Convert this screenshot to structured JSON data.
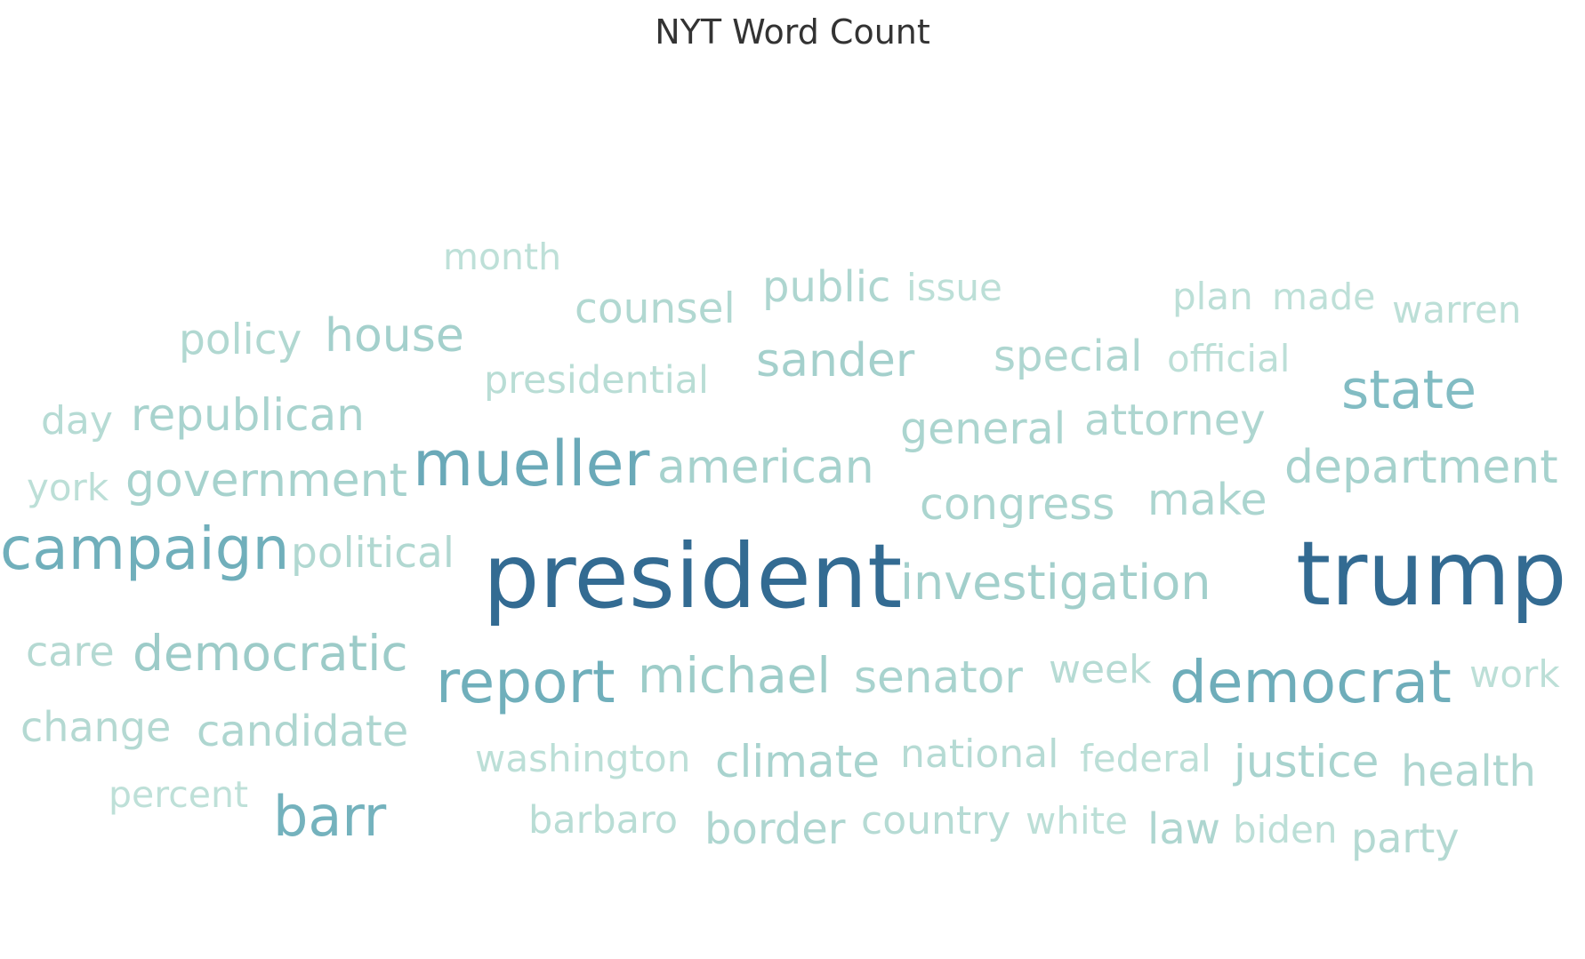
{
  "chart_data": {
    "type": "wordcloud",
    "title": "NYT Word Count",
    "words": [
      {
        "text": "president",
        "weight": 100,
        "color": "#336b92"
      },
      {
        "text": "trump",
        "weight": 100,
        "color": "#336b92"
      },
      {
        "text": "mueller",
        "weight": 58,
        "color": "#6aa9b8"
      },
      {
        "text": "campaign",
        "weight": 55,
        "color": "#70afbb"
      },
      {
        "text": "report",
        "weight": 55,
        "color": "#70afbb"
      },
      {
        "text": "democrat",
        "weight": 55,
        "color": "#6eadba"
      },
      {
        "text": "barr",
        "weight": 52,
        "color": "#74b2bd"
      },
      {
        "text": "state",
        "weight": 50,
        "color": "#82bcc3"
      },
      {
        "text": "investigation",
        "weight": 45,
        "color": "#a2cfcb"
      },
      {
        "text": "michael",
        "weight": 46,
        "color": "#9ecdc9"
      },
      {
        "text": "democratic",
        "weight": 46,
        "color": "#9ccbc8"
      },
      {
        "text": "government",
        "weight": 44,
        "color": "#a6d2cd"
      },
      {
        "text": "department",
        "weight": 44,
        "color": "#a6d2cd"
      },
      {
        "text": "house",
        "weight": 44,
        "color": "#a4d0cc"
      },
      {
        "text": "american",
        "weight": 44,
        "color": "#a6d2cd"
      },
      {
        "text": "sander",
        "weight": 44,
        "color": "#a4d0cc"
      },
      {
        "text": "senator",
        "weight": 42,
        "color": "#a8d3ce"
      },
      {
        "text": "republican",
        "weight": 42,
        "color": "#a8d3ce"
      },
      {
        "text": "climate",
        "weight": 42,
        "color": "#a8d3ce"
      },
      {
        "text": "justice",
        "weight": 42,
        "color": "#a8d3ce"
      },
      {
        "text": "general",
        "weight": 41,
        "color": "#abd5cf"
      },
      {
        "text": "congress",
        "weight": 41,
        "color": "#abd5cf"
      },
      {
        "text": "make",
        "weight": 41,
        "color": "#abd5cf"
      },
      {
        "text": "candidate",
        "weight": 40,
        "color": "#aed6d0"
      },
      {
        "text": "health",
        "weight": 40,
        "color": "#aed6d0"
      },
      {
        "text": "border",
        "weight": 40,
        "color": "#aed6d0"
      },
      {
        "text": "law",
        "weight": 40,
        "color": "#aed6d0"
      },
      {
        "text": "public",
        "weight": 40,
        "color": "#aed6d0"
      },
      {
        "text": "attorney",
        "weight": 40,
        "color": "#aed6d0"
      },
      {
        "text": "special",
        "weight": 40,
        "color": "#aed6d0"
      },
      {
        "text": "policy",
        "weight": 39,
        "color": "#b1d8d1"
      },
      {
        "text": "counsel",
        "weight": 39,
        "color": "#b1d8d1"
      },
      {
        "text": "political",
        "weight": 39,
        "color": "#b1d8d1"
      },
      {
        "text": "care",
        "weight": 38,
        "color": "#b4d9d2"
      },
      {
        "text": "change",
        "weight": 38,
        "color": "#b4d9d2"
      },
      {
        "text": "party",
        "weight": 38,
        "color": "#b4d9d2"
      },
      {
        "text": "country",
        "weight": 37,
        "color": "#b6dbd4"
      },
      {
        "text": "day",
        "weight": 37,
        "color": "#b6dbd4"
      },
      {
        "text": "week",
        "weight": 37,
        "color": "#b6dbd4"
      },
      {
        "text": "national",
        "weight": 37,
        "color": "#b6dbd4"
      },
      {
        "text": "presidential",
        "weight": 36,
        "color": "#b9ddd5"
      },
      {
        "text": "barbaro",
        "weight": 36,
        "color": "#b9ddd5"
      },
      {
        "text": "washington",
        "weight": 35,
        "color": "#bcdfd7"
      },
      {
        "text": "york",
        "weight": 35,
        "color": "#bcdfd7"
      },
      {
        "text": "official",
        "weight": 35,
        "color": "#bcdfd7"
      },
      {
        "text": "federal",
        "weight": 35,
        "color": "#bcdfd7"
      },
      {
        "text": "biden",
        "weight": 35,
        "color": "#bcdfd7"
      },
      {
        "text": "white",
        "weight": 35,
        "color": "#bcdfd7"
      },
      {
        "text": "work",
        "weight": 35,
        "color": "#bcdfd7"
      },
      {
        "text": "warren",
        "weight": 35,
        "color": "#bcdfd7"
      },
      {
        "text": "issue",
        "weight": 35,
        "color": "#bcdfd7"
      },
      {
        "text": "plan",
        "weight": 35,
        "color": "#bcdfd7"
      },
      {
        "text": "made",
        "weight": 34,
        "color": "#bee0d8"
      },
      {
        "text": "percent",
        "weight": 34,
        "color": "#bee0d8"
      },
      {
        "text": "month",
        "weight": 34,
        "color": "#bee0d8"
      }
    ]
  }
}
